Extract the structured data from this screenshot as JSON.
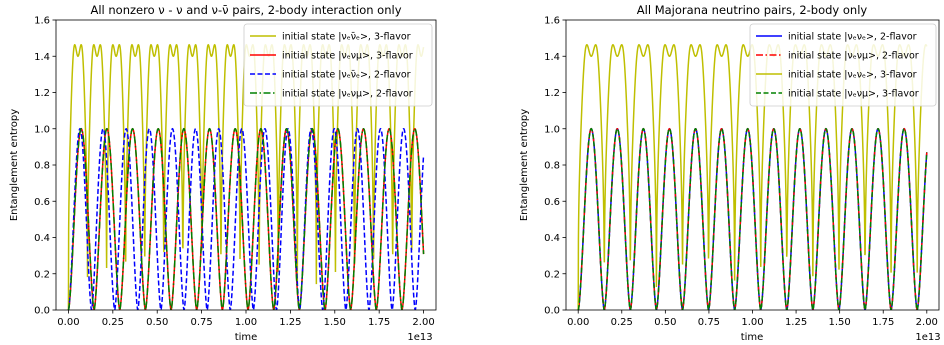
{
  "chart_data": [
    {
      "type": "line",
      "title": "All nonzero ν - ν and ν-ν̄ pairs, 2-body interaction only",
      "xlabel": "time",
      "ylabel": "Entanglement entropy",
      "x_offset_label": "1e13",
      "xlim": [
        -0.07,
        2.07
      ],
      "ylim": [
        0.0,
        1.6
      ],
      "xticks": [
        0.0,
        0.25,
        0.5,
        0.75,
        1.0,
        1.25,
        1.5,
        1.75,
        2.0
      ],
      "xtick_labels": [
        "0.00",
        "0.25",
        "0.50",
        "0.75",
        "1.00",
        "1.25",
        "1.50",
        "1.75",
        "2.00"
      ],
      "yticks": [
        0.0,
        0.2,
        0.4,
        0.6,
        0.8,
        1.0,
        1.2,
        1.4,
        1.6
      ],
      "ytick_labels": [
        "0.0",
        "0.2",
        "0.4",
        "0.6",
        "0.8",
        "1.0",
        "1.2",
        "1.4",
        "1.6"
      ],
      "grid": false,
      "legend_position": "top-right",
      "series": [
        {
          "name": "initial state |νₑν̄ₑ>, 3-flavor",
          "color": "#bfbf00",
          "dash": "solid",
          "profile": "twin-peak",
          "peak": 1.585,
          "dip": 1.4,
          "period": 0.1074,
          "phase": 0.0
        },
        {
          "name": "initial state |νₑνμ>, 3-flavor",
          "color": "#ff0000",
          "dash": "solid",
          "profile": "hump",
          "peak": 1.0,
          "period": 0.1445,
          "phase": 0.0
        },
        {
          "name": "initial state |νₑν̄ₑ>, 2-flavor",
          "color": "#0000ff",
          "dash": "dashed",
          "profile": "hump",
          "peak": 1.0,
          "period": 0.1302,
          "phase": 0.0
        },
        {
          "name": "initial state |νₑνμ>, 2-flavor",
          "color": "#008000",
          "dash": "dashdot",
          "profile": "hump",
          "peak": 1.0,
          "period": 0.1445,
          "phase": 0.0
        }
      ]
    },
    {
      "type": "line",
      "title": "All Majorana neutrino pairs, 2-body only",
      "xlabel": "time",
      "ylabel": "Entanglement entropy",
      "x_offset_label": "1e13",
      "xlim": [
        -0.07,
        2.07
      ],
      "ylim": [
        0.0,
        1.6
      ],
      "xticks": [
        0.0,
        0.25,
        0.5,
        0.75,
        1.0,
        1.25,
        1.5,
        1.75,
        2.0
      ],
      "xtick_labels": [
        "0.00",
        "0.25",
        "0.50",
        "0.75",
        "1.00",
        "1.25",
        "1.50",
        "1.75",
        "2.00"
      ],
      "yticks": [
        0.0,
        0.2,
        0.4,
        0.6,
        0.8,
        1.0,
        1.2,
        1.4,
        1.6
      ],
      "ytick_labels": [
        "0.0",
        "0.2",
        "0.4",
        "0.6",
        "0.8",
        "1.0",
        "1.2",
        "1.4",
        "1.6"
      ],
      "grid": false,
      "legend_position": "top-right",
      "series": [
        {
          "name": "initial state |νₑνₑ>, 2-flavor",
          "color": "#0000ff",
          "dash": "solid",
          "profile": "hump",
          "peak": 1.0,
          "period": 0.1496,
          "phase": 0.0
        },
        {
          "name": "initial state |νₑνμ>, 2-flavor",
          "color": "#ff0000",
          "dash": "dashdot",
          "profile": "hump",
          "peak": 1.0,
          "period": 0.1496,
          "phase": 0.0
        },
        {
          "name": "initial state |νₑνₑ>, 3-flavor",
          "color": "#bfbf00",
          "dash": "solid",
          "profile": "twin-peak",
          "peak": 1.585,
          "dip": 1.4,
          "period": 0.1496,
          "phase": 0.0
        },
        {
          "name": "initial state |νₑνμ>, 3-flavor",
          "color": "#008000",
          "dash": "dashed",
          "profile": "hump",
          "peak": 1.0,
          "period": 0.1496,
          "phase": 0.0
        }
      ]
    }
  ]
}
